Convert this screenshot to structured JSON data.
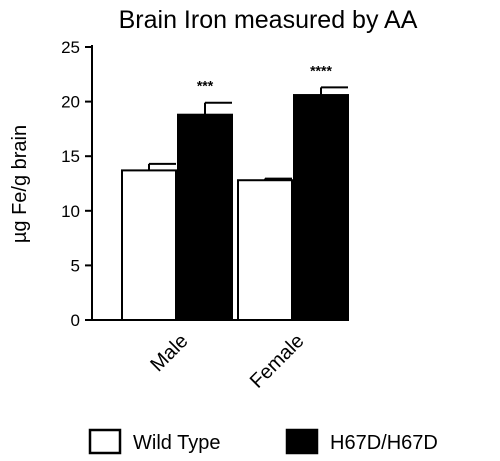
{
  "chart_data": {
    "type": "bar",
    "title": "Brain Iron measured by AA",
    "xlabel": "",
    "ylabel": "µg Fe/g brain",
    "ylim": [
      0,
      25
    ],
    "yticks": [
      0,
      5,
      10,
      15,
      20,
      25
    ],
    "categories": [
      "Male",
      "Female"
    ],
    "series": [
      {
        "name": "Wild Type",
        "values": [
          13.7,
          12.8
        ],
        "errors": [
          0.6,
          0.15
        ],
        "fill": "#ffffff",
        "stroke": "#000000"
      },
      {
        "name": "H67D/H67D",
        "values": [
          18.8,
          20.6
        ],
        "errors": [
          1.1,
          0.7
        ],
        "fill": "#000000",
        "stroke": "#000000"
      }
    ],
    "annotations": [
      {
        "category": "Male",
        "series": "H67D/H67D",
        "text": "***"
      },
      {
        "category": "Female",
        "series": "H67D/H67D",
        "text": "****"
      }
    ],
    "legend_position": "bottom",
    "grid": false
  }
}
